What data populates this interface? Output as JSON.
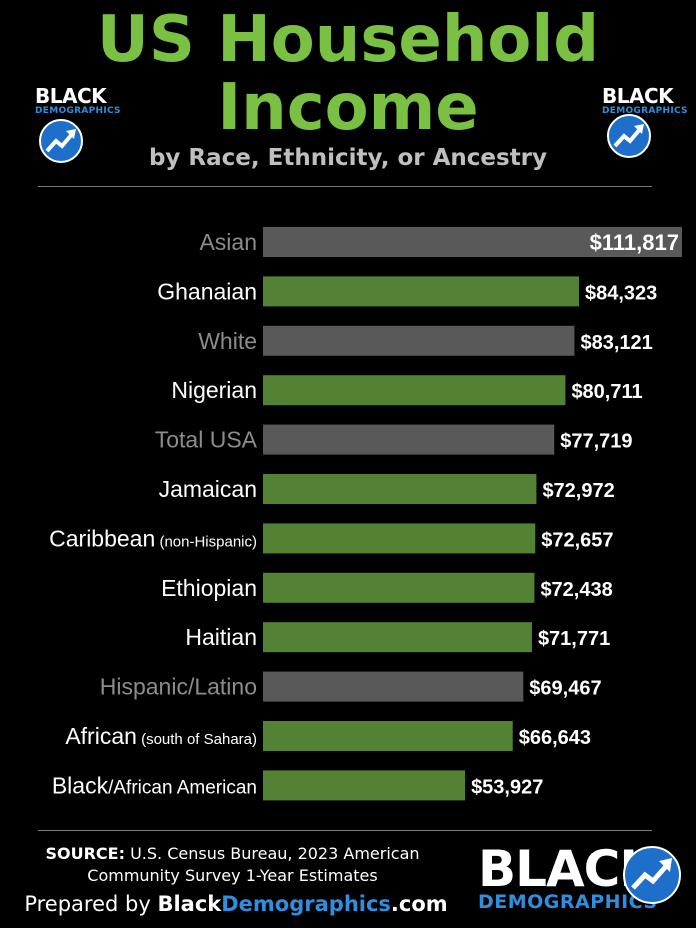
{
  "header": {
    "title_line1": "US Household",
    "title_line2": "Income",
    "subtitle": "by Race, Ethnicity, or Ancestry"
  },
  "logo": {
    "word1": "BLACK",
    "word2": "DEMOGRAPHICS",
    "icon": "trending-up-arrow-icon"
  },
  "colors": {
    "title": "#7ac143",
    "green_bar": "#548235",
    "gray_bar": "#595959",
    "gray_label": "#8c8c8c",
    "brand_blue": "#2e8fe0"
  },
  "chart_data": {
    "type": "bar",
    "orientation": "horizontal",
    "title": "US Household Income",
    "subtitle": "by Race, Ethnicity, or Ancestry",
    "xlim": [
      0,
      111817
    ],
    "grid": false,
    "categories": [
      {
        "label": "Asian",
        "note": "",
        "value": 111817,
        "value_label": "$111,817",
        "group": "gray"
      },
      {
        "label": "Ghanaian",
        "note": "",
        "value": 84323,
        "value_label": "$84,323",
        "group": "green"
      },
      {
        "label": "White",
        "note": "",
        "value": 83121,
        "value_label": "$83,121",
        "group": "gray"
      },
      {
        "label": "Nigerian",
        "note": "",
        "value": 80711,
        "value_label": "$80,711",
        "group": "green"
      },
      {
        "label": "Total USA",
        "note": "",
        "value": 77719,
        "value_label": "$77,719",
        "group": "gray"
      },
      {
        "label": "Jamaican",
        "note": "",
        "value": 72972,
        "value_label": "$72,972",
        "group": "green"
      },
      {
        "label": "Caribbean",
        "note": "(non-Hispanic)",
        "value": 72657,
        "value_label": "$72,657",
        "group": "green"
      },
      {
        "label": "Ethiopian",
        "note": "",
        "value": 72438,
        "value_label": "$72,438",
        "group": "green"
      },
      {
        "label": "Haitian",
        "note": "",
        "value": 71771,
        "value_label": "$71,771",
        "group": "green"
      },
      {
        "label": "Hispanic/Latino",
        "note": "",
        "value": 69467,
        "value_label": "$69,467",
        "group": "gray"
      },
      {
        "label": "African",
        "note": "(south of Sahara)",
        "value": 66643,
        "value_label": "$66,643",
        "group": "green"
      },
      {
        "label": "Black",
        "note": "/African American",
        "value": 53927,
        "value_label": "$53,927",
        "group": "green"
      }
    ]
  },
  "footer": {
    "source_label": "SOURCE:",
    "source_text": "U.S. Census Bureau, 2023 American",
    "source_text2": "Community Survey 1-Year Estimates",
    "prepared_prefix": "Prepared by",
    "prepared_brand1": "Black",
    "prepared_brand2": "Demographics",
    "prepared_brand3": ".com"
  }
}
